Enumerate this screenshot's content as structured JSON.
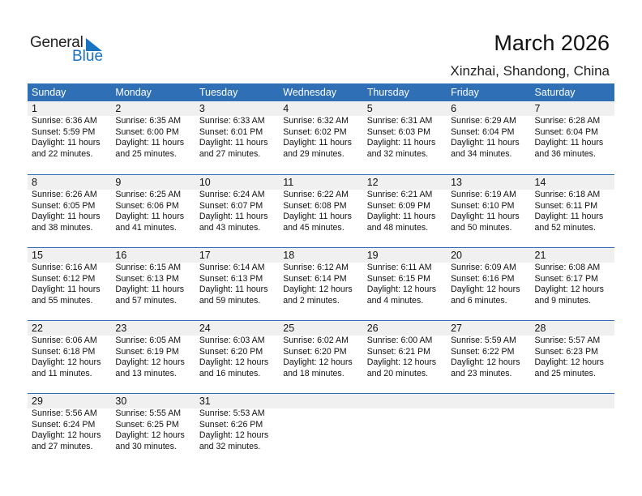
{
  "logo": {
    "text1": "General",
    "text2": "Blue"
  },
  "header": {
    "title": "March 2026",
    "location": "Xinzhai, Shandong, China"
  },
  "colors": {
    "header_bg": "#2e6fb5",
    "band_bg": "#f0f0f0",
    "logo_blue": "#1a73c0"
  },
  "weekdays": [
    "Sunday",
    "Monday",
    "Tuesday",
    "Wednesday",
    "Thursday",
    "Friday",
    "Saturday"
  ],
  "leading_blank_days": 0,
  "days": [
    {
      "day": "1",
      "sunrise": "Sunrise: 6:36 AM",
      "sunset": "Sunset: 5:59 PM",
      "daylight1": "Daylight: 11 hours",
      "daylight2": "and 22 minutes."
    },
    {
      "day": "2",
      "sunrise": "Sunrise: 6:35 AM",
      "sunset": "Sunset: 6:00 PM",
      "daylight1": "Daylight: 11 hours",
      "daylight2": "and 25 minutes."
    },
    {
      "day": "3",
      "sunrise": "Sunrise: 6:33 AM",
      "sunset": "Sunset: 6:01 PM",
      "daylight1": "Daylight: 11 hours",
      "daylight2": "and 27 minutes."
    },
    {
      "day": "4",
      "sunrise": "Sunrise: 6:32 AM",
      "sunset": "Sunset: 6:02 PM",
      "daylight1": "Daylight: 11 hours",
      "daylight2": "and 29 minutes."
    },
    {
      "day": "5",
      "sunrise": "Sunrise: 6:31 AM",
      "sunset": "Sunset: 6:03 PM",
      "daylight1": "Daylight: 11 hours",
      "daylight2": "and 32 minutes."
    },
    {
      "day": "6",
      "sunrise": "Sunrise: 6:29 AM",
      "sunset": "Sunset: 6:04 PM",
      "daylight1": "Daylight: 11 hours",
      "daylight2": "and 34 minutes."
    },
    {
      "day": "7",
      "sunrise": "Sunrise: 6:28 AM",
      "sunset": "Sunset: 6:04 PM",
      "daylight1": "Daylight: 11 hours",
      "daylight2": "and 36 minutes."
    },
    {
      "day": "8",
      "sunrise": "Sunrise: 6:26 AM",
      "sunset": "Sunset: 6:05 PM",
      "daylight1": "Daylight: 11 hours",
      "daylight2": "and 38 minutes."
    },
    {
      "day": "9",
      "sunrise": "Sunrise: 6:25 AM",
      "sunset": "Sunset: 6:06 PM",
      "daylight1": "Daylight: 11 hours",
      "daylight2": "and 41 minutes."
    },
    {
      "day": "10",
      "sunrise": "Sunrise: 6:24 AM",
      "sunset": "Sunset: 6:07 PM",
      "daylight1": "Daylight: 11 hours",
      "daylight2": "and 43 minutes."
    },
    {
      "day": "11",
      "sunrise": "Sunrise: 6:22 AM",
      "sunset": "Sunset: 6:08 PM",
      "daylight1": "Daylight: 11 hours",
      "daylight2": "and 45 minutes."
    },
    {
      "day": "12",
      "sunrise": "Sunrise: 6:21 AM",
      "sunset": "Sunset: 6:09 PM",
      "daylight1": "Daylight: 11 hours",
      "daylight2": "and 48 minutes."
    },
    {
      "day": "13",
      "sunrise": "Sunrise: 6:19 AM",
      "sunset": "Sunset: 6:10 PM",
      "daylight1": "Daylight: 11 hours",
      "daylight2": "and 50 minutes."
    },
    {
      "day": "14",
      "sunrise": "Sunrise: 6:18 AM",
      "sunset": "Sunset: 6:11 PM",
      "daylight1": "Daylight: 11 hours",
      "daylight2": "and 52 minutes."
    },
    {
      "day": "15",
      "sunrise": "Sunrise: 6:16 AM",
      "sunset": "Sunset: 6:12 PM",
      "daylight1": "Daylight: 11 hours",
      "daylight2": "and 55 minutes."
    },
    {
      "day": "16",
      "sunrise": "Sunrise: 6:15 AM",
      "sunset": "Sunset: 6:13 PM",
      "daylight1": "Daylight: 11 hours",
      "daylight2": "and 57 minutes."
    },
    {
      "day": "17",
      "sunrise": "Sunrise: 6:14 AM",
      "sunset": "Sunset: 6:13 PM",
      "daylight1": "Daylight: 11 hours",
      "daylight2": "and 59 minutes."
    },
    {
      "day": "18",
      "sunrise": "Sunrise: 6:12 AM",
      "sunset": "Sunset: 6:14 PM",
      "daylight1": "Daylight: 12 hours",
      "daylight2": "and 2 minutes."
    },
    {
      "day": "19",
      "sunrise": "Sunrise: 6:11 AM",
      "sunset": "Sunset: 6:15 PM",
      "daylight1": "Daylight: 12 hours",
      "daylight2": "and 4 minutes."
    },
    {
      "day": "20",
      "sunrise": "Sunrise: 6:09 AM",
      "sunset": "Sunset: 6:16 PM",
      "daylight1": "Daylight: 12 hours",
      "daylight2": "and 6 minutes."
    },
    {
      "day": "21",
      "sunrise": "Sunrise: 6:08 AM",
      "sunset": "Sunset: 6:17 PM",
      "daylight1": "Daylight: 12 hours",
      "daylight2": "and 9 minutes."
    },
    {
      "day": "22",
      "sunrise": "Sunrise: 6:06 AM",
      "sunset": "Sunset: 6:18 PM",
      "daylight1": "Daylight: 12 hours",
      "daylight2": "and 11 minutes."
    },
    {
      "day": "23",
      "sunrise": "Sunrise: 6:05 AM",
      "sunset": "Sunset: 6:19 PM",
      "daylight1": "Daylight: 12 hours",
      "daylight2": "and 13 minutes."
    },
    {
      "day": "24",
      "sunrise": "Sunrise: 6:03 AM",
      "sunset": "Sunset: 6:20 PM",
      "daylight1": "Daylight: 12 hours",
      "daylight2": "and 16 minutes."
    },
    {
      "day": "25",
      "sunrise": "Sunrise: 6:02 AM",
      "sunset": "Sunset: 6:20 PM",
      "daylight1": "Daylight: 12 hours",
      "daylight2": "and 18 minutes."
    },
    {
      "day": "26",
      "sunrise": "Sunrise: 6:00 AM",
      "sunset": "Sunset: 6:21 PM",
      "daylight1": "Daylight: 12 hours",
      "daylight2": "and 20 minutes."
    },
    {
      "day": "27",
      "sunrise": "Sunrise: 5:59 AM",
      "sunset": "Sunset: 6:22 PM",
      "daylight1": "Daylight: 12 hours",
      "daylight2": "and 23 minutes."
    },
    {
      "day": "28",
      "sunrise": "Sunrise: 5:57 AM",
      "sunset": "Sunset: 6:23 PM",
      "daylight1": "Daylight: 12 hours",
      "daylight2": "and 25 minutes."
    },
    {
      "day": "29",
      "sunrise": "Sunrise: 5:56 AM",
      "sunset": "Sunset: 6:24 PM",
      "daylight1": "Daylight: 12 hours",
      "daylight2": "and 27 minutes."
    },
    {
      "day": "30",
      "sunrise": "Sunrise: 5:55 AM",
      "sunset": "Sunset: 6:25 PM",
      "daylight1": "Daylight: 12 hours",
      "daylight2": "and 30 minutes."
    },
    {
      "day": "31",
      "sunrise": "Sunrise: 5:53 AM",
      "sunset": "Sunset: 6:26 PM",
      "daylight1": "Daylight: 12 hours",
      "daylight2": "and 32 minutes."
    }
  ]
}
